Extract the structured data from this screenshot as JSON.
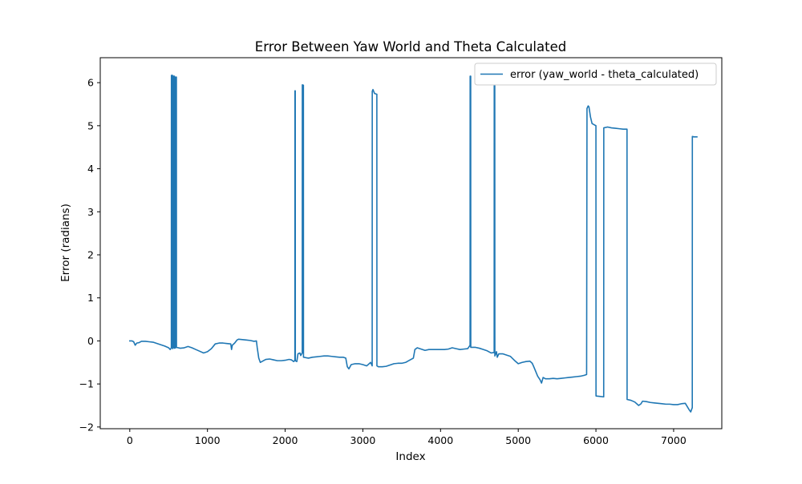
{
  "chart_data": {
    "type": "line",
    "title": "Error Between Yaw World and Theta Calculated",
    "xlabel": "Index",
    "ylabel": "Error (radians)",
    "xlim": [
      -380,
      7620
    ],
    "ylim": [
      -2.04,
      6.58
    ],
    "x_ticks": [
      0,
      1000,
      2000,
      3000,
      4000,
      5000,
      6000,
      7000
    ],
    "x_tick_labels": [
      "0",
      "1000",
      "2000",
      "3000",
      "4000",
      "5000",
      "6000",
      "7000"
    ],
    "y_ticks": [
      -2,
      -1,
      0,
      1,
      2,
      3,
      4,
      5,
      6
    ],
    "y_tick_labels": [
      "−2",
      "−1",
      "0",
      "1",
      "2",
      "3",
      "4",
      "5",
      "6"
    ],
    "grid": false,
    "legend_position": "upper right",
    "series": [
      {
        "name": "error (yaw_world - theta_calculated)",
        "color": "#1f77b4",
        "points": [
          [
            0,
            0.0
          ],
          [
            30,
            0.0
          ],
          [
            50,
            -0.02
          ],
          [
            70,
            -0.1
          ],
          [
            90,
            -0.05
          ],
          [
            120,
            -0.04
          ],
          [
            150,
            -0.01
          ],
          [
            200,
            -0.01
          ],
          [
            250,
            -0.02
          ],
          [
            300,
            -0.03
          ],
          [
            350,
            -0.06
          ],
          [
            400,
            -0.09
          ],
          [
            450,
            -0.12
          ],
          [
            500,
            -0.16
          ],
          [
            520,
            -0.2
          ],
          [
            535,
            -0.16
          ],
          [
            536,
            6.17
          ],
          [
            550,
            6.17
          ],
          [
            551,
            -0.18
          ],
          [
            560,
            -0.16
          ],
          [
            561,
            6.15
          ],
          [
            575,
            6.15
          ],
          [
            576,
            -0.17
          ],
          [
            590,
            -0.16
          ],
          [
            591,
            6.13
          ],
          [
            600,
            6.13
          ],
          [
            601,
            -0.15
          ],
          [
            650,
            -0.17
          ],
          [
            700,
            -0.16
          ],
          [
            750,
            -0.13
          ],
          [
            800,
            -0.16
          ],
          [
            850,
            -0.2
          ],
          [
            900,
            -0.24
          ],
          [
            950,
            -0.28
          ],
          [
            1000,
            -0.25
          ],
          [
            1050,
            -0.18
          ],
          [
            1100,
            -0.07
          ],
          [
            1150,
            -0.05
          ],
          [
            1200,
            -0.05
          ],
          [
            1250,
            -0.06
          ],
          [
            1300,
            -0.07
          ],
          [
            1310,
            -0.2
          ],
          [
            1320,
            -0.1
          ],
          [
            1350,
            -0.05
          ],
          [
            1380,
            0.02
          ],
          [
            1400,
            0.04
          ],
          [
            1450,
            0.03
          ],
          [
            1500,
            0.02
          ],
          [
            1550,
            0.01
          ],
          [
            1600,
            -0.01
          ],
          [
            1630,
            0.0
          ],
          [
            1640,
            -0.15
          ],
          [
            1660,
            -0.4
          ],
          [
            1680,
            -0.5
          ],
          [
            1700,
            -0.48
          ],
          [
            1750,
            -0.43
          ],
          [
            1800,
            -0.42
          ],
          [
            1850,
            -0.44
          ],
          [
            1900,
            -0.46
          ],
          [
            1950,
            -0.46
          ],
          [
            2000,
            -0.45
          ],
          [
            2050,
            -0.43
          ],
          [
            2080,
            -0.44
          ],
          [
            2110,
            -0.48
          ],
          [
            2125,
            -0.45
          ],
          [
            2126,
            5.81
          ],
          [
            2130,
            5.81
          ],
          [
            2131,
            -0.46
          ],
          [
            2150,
            -0.48
          ],
          [
            2165,
            -0.3
          ],
          [
            2190,
            -0.28
          ],
          [
            2200,
            -0.34
          ],
          [
            2220,
            -0.28
          ],
          [
            2221,
            5.95
          ],
          [
            2235,
            5.94
          ],
          [
            2236,
            -0.38
          ],
          [
            2300,
            -0.4
          ],
          [
            2350,
            -0.38
          ],
          [
            2400,
            -0.37
          ],
          [
            2450,
            -0.36
          ],
          [
            2500,
            -0.35
          ],
          [
            2550,
            -0.35
          ],
          [
            2600,
            -0.36
          ],
          [
            2650,
            -0.37
          ],
          [
            2700,
            -0.38
          ],
          [
            2750,
            -0.38
          ],
          [
            2780,
            -0.4
          ],
          [
            2800,
            -0.6
          ],
          [
            2820,
            -0.65
          ],
          [
            2850,
            -0.55
          ],
          [
            2900,
            -0.53
          ],
          [
            2950,
            -0.53
          ],
          [
            3000,
            -0.55
          ],
          [
            3050,
            -0.58
          ],
          [
            3100,
            -0.5
          ],
          [
            3120,
            -0.58
          ],
          [
            3121,
            5.8
          ],
          [
            3130,
            5.84
          ],
          [
            3150,
            5.75
          ],
          [
            3180,
            5.73
          ],
          [
            3181,
            -0.58
          ],
          [
            3200,
            -0.6
          ],
          [
            3250,
            -0.6
          ],
          [
            3300,
            -0.59
          ],
          [
            3350,
            -0.56
          ],
          [
            3400,
            -0.53
          ],
          [
            3450,
            -0.52
          ],
          [
            3500,
            -0.52
          ],
          [
            3550,
            -0.5
          ],
          [
            3600,
            -0.45
          ],
          [
            3650,
            -0.4
          ],
          [
            3670,
            -0.2
          ],
          [
            3700,
            -0.16
          ],
          [
            3750,
            -0.19
          ],
          [
            3800,
            -0.22
          ],
          [
            3850,
            -0.2
          ],
          [
            3900,
            -0.2
          ],
          [
            3950,
            -0.2
          ],
          [
            4000,
            -0.2
          ],
          [
            4050,
            -0.2
          ],
          [
            4100,
            -0.19
          ],
          [
            4150,
            -0.16
          ],
          [
            4200,
            -0.18
          ],
          [
            4250,
            -0.2
          ],
          [
            4300,
            -0.19
          ],
          [
            4350,
            -0.18
          ],
          [
            4380,
            -0.1
          ],
          [
            4381,
            6.15
          ],
          [
            4388,
            6.15
          ],
          [
            4389,
            -0.15
          ],
          [
            4450,
            -0.15
          ],
          [
            4500,
            -0.17
          ],
          [
            4550,
            -0.2
          ],
          [
            4600,
            -0.23
          ],
          [
            4650,
            -0.28
          ],
          [
            4690,
            -0.27
          ],
          [
            4691,
            5.93
          ],
          [
            4698,
            5.93
          ],
          [
            4699,
            -0.35
          ],
          [
            4720,
            -0.25
          ],
          [
            4730,
            -0.38
          ],
          [
            4750,
            -0.3
          ],
          [
            4800,
            -0.3
          ],
          [
            4850,
            -0.33
          ],
          [
            4900,
            -0.36
          ],
          [
            4950,
            -0.45
          ],
          [
            5000,
            -0.53
          ],
          [
            5050,
            -0.5
          ],
          [
            5100,
            -0.48
          ],
          [
            5150,
            -0.47
          ],
          [
            5180,
            -0.52
          ],
          [
            5200,
            -0.6
          ],
          [
            5250,
            -0.82
          ],
          [
            5280,
            -0.9
          ],
          [
            5300,
            -0.98
          ],
          [
            5320,
            -0.85
          ],
          [
            5350,
            -0.88
          ],
          [
            5400,
            -0.88
          ],
          [
            5450,
            -0.87
          ],
          [
            5500,
            -0.88
          ],
          [
            5550,
            -0.87
          ],
          [
            5600,
            -0.86
          ],
          [
            5650,
            -0.85
          ],
          [
            5700,
            -0.84
          ],
          [
            5750,
            -0.83
          ],
          [
            5800,
            -0.82
          ],
          [
            5850,
            -0.8
          ],
          [
            5880,
            -0.78
          ],
          [
            5885,
            5.4
          ],
          [
            5900,
            5.46
          ],
          [
            5910,
            5.44
          ],
          [
            5930,
            5.2
          ],
          [
            5950,
            5.05
          ],
          [
            5980,
            5.02
          ],
          [
            6000,
            5.0
          ],
          [
            6001,
            -1.28
          ],
          [
            6050,
            -1.29
          ],
          [
            6100,
            -1.3
          ],
          [
            6101,
            4.95
          ],
          [
            6150,
            4.97
          ],
          [
            6200,
            4.95
          ],
          [
            6250,
            4.94
          ],
          [
            6300,
            4.93
          ],
          [
            6350,
            4.92
          ],
          [
            6400,
            4.92
          ],
          [
            6401,
            -1.36
          ],
          [
            6450,
            -1.38
          ],
          [
            6500,
            -1.42
          ],
          [
            6550,
            -1.5
          ],
          [
            6580,
            -1.46
          ],
          [
            6600,
            -1.4
          ],
          [
            6650,
            -1.41
          ],
          [
            6700,
            -1.43
          ],
          [
            6750,
            -1.44
          ],
          [
            6800,
            -1.45
          ],
          [
            6850,
            -1.46
          ],
          [
            6900,
            -1.47
          ],
          [
            6950,
            -1.47
          ],
          [
            7000,
            -1.48
          ],
          [
            7050,
            -1.48
          ],
          [
            7100,
            -1.46
          ],
          [
            7150,
            -1.45
          ],
          [
            7200,
            -1.6
          ],
          [
            7220,
            -1.65
          ],
          [
            7240,
            -1.55
          ],
          [
            7241,
            4.75
          ],
          [
            7260,
            4.74
          ],
          [
            7300,
            4.74
          ]
        ]
      }
    ]
  }
}
